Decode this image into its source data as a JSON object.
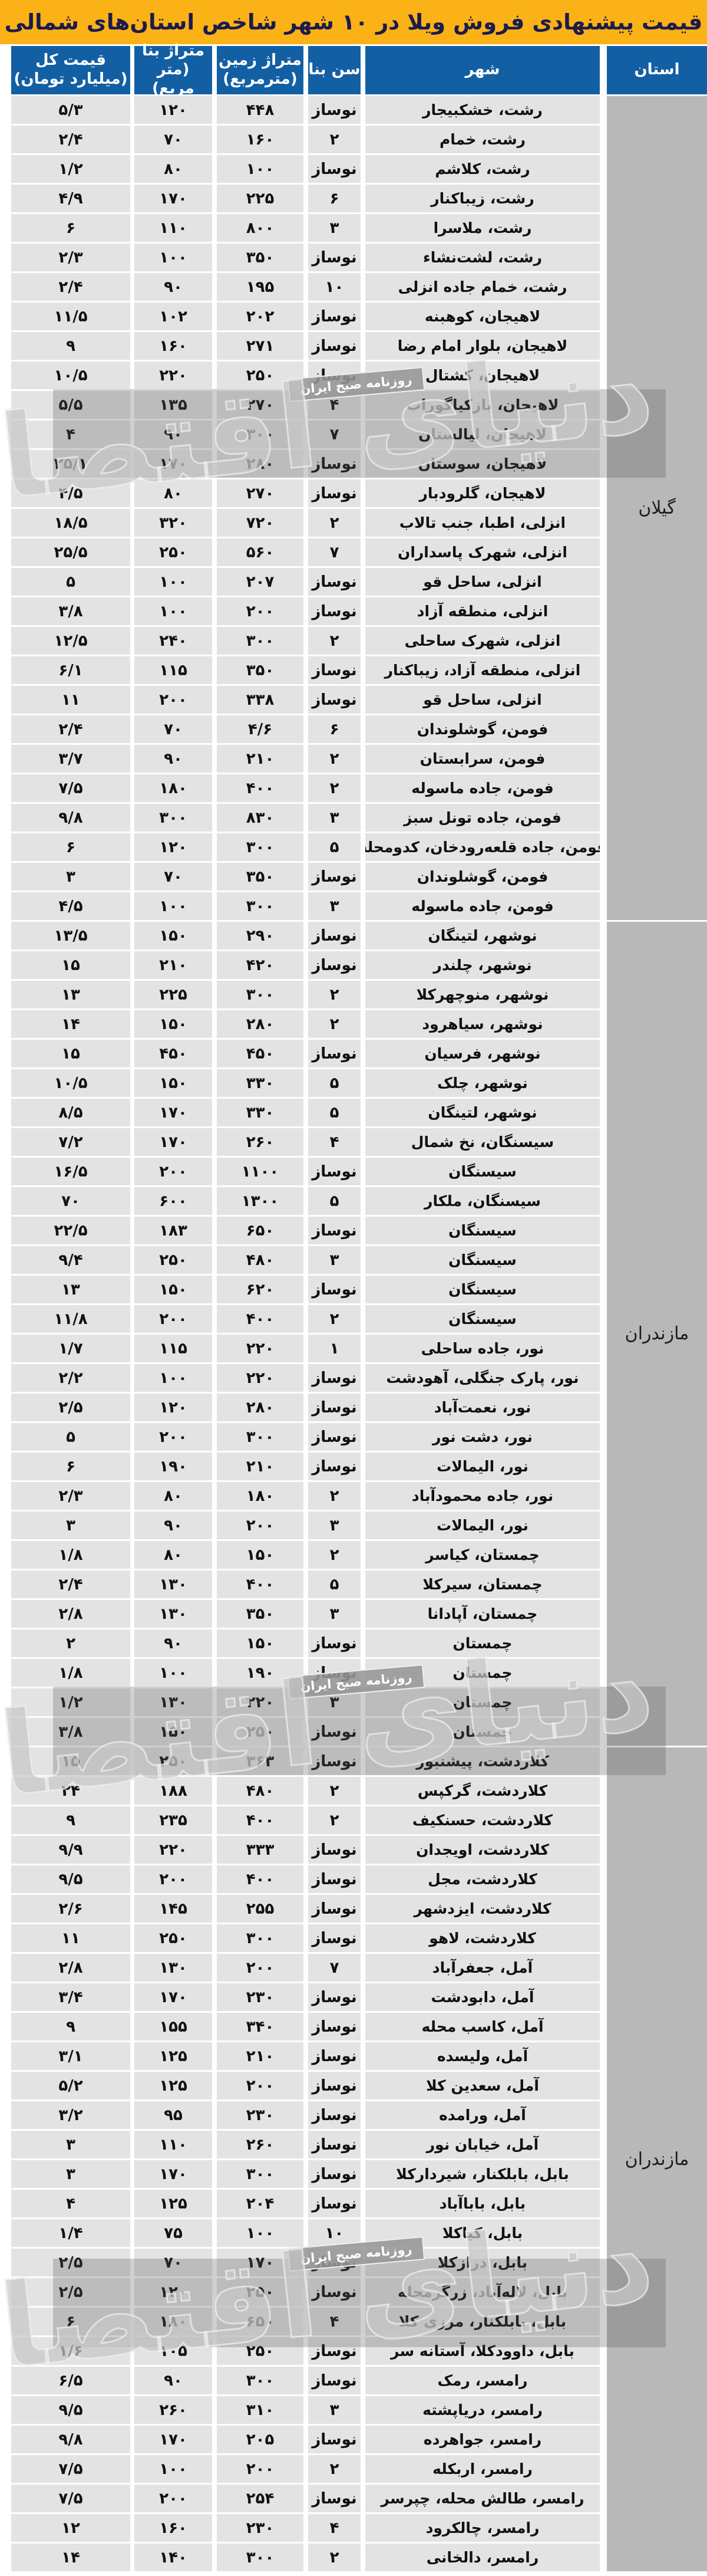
{
  "title": "قیمت پیشنهادی فروش ویلا در ۱۰ شهر شاخص استان‌های شمالی",
  "watermark": {
    "logo_text": "دنیای اقتصاد",
    "badge_text": "روزنامه صبح ایران"
  },
  "colors": {
    "title_bg": "#fbb216",
    "title_text": "#1b1b4e",
    "header_bg": "#135fa4",
    "header_text": "#ffffff",
    "row_bg": "#e3e3e3",
    "province_bg": "#b8b8b8",
    "body_text": "#111111"
  },
  "table": {
    "headers": {
      "province": "استان",
      "city": "شهر",
      "age": "سن بنا",
      "land_l1": "متراژ زمین",
      "land_l2": "(مترمربع)",
      "building_l1": "متراژ بنا",
      "building_l2": "(متر مربع)",
      "price_l1": "قیمت کل",
      "price_l2": "(میلیارد تومان)"
    },
    "row_format": [
      "city",
      "age",
      "land_area",
      "building_area",
      "total_price"
    ],
    "groups": [
      {
        "province": "گیلان",
        "rows": [
          [
            "رشت، خشکبیجار",
            "نوساز",
            "۴۴۸",
            "۱۲۰",
            "۵/۳"
          ],
          [
            "رشت، خمام",
            "۲",
            "۱۶۰",
            "۷۰",
            "۲/۴"
          ],
          [
            "رشت، کلاشم",
            "نوساز",
            "۱۰۰",
            "۸۰",
            "۱/۲"
          ],
          [
            "رشت، زیباکنار",
            "۶",
            "۲۲۵",
            "۱۷۰",
            "۴/۹"
          ],
          [
            "رشت، ملاسرا",
            "۳",
            "۸۰۰",
            "۱۱۰",
            "۶"
          ],
          [
            "رشت، لشت‌نشاء",
            "نوساز",
            "۳۵۰",
            "۱۰۰",
            "۲/۳"
          ],
          [
            "رشت، خمام جاده انزلی",
            "۱۰",
            "۱۹۵",
            "۹۰",
            "۲/۴"
          ],
          [
            "لاهیجان، کوهبنه",
            "نوساز",
            "۲۰۲",
            "۱۰۲",
            "۱۱/۵"
          ],
          [
            "لاهیجان، بلوار امام رضا",
            "نوساز",
            "۲۷۱",
            "۱۶۰",
            "۹"
          ],
          [
            "لاهیجان، کشتال",
            "نوساز",
            "۲۵۰",
            "۲۲۰",
            "۱۰/۵"
          ],
          [
            "لاهیجان، بازکیاگوراب",
            "۴",
            "۲۷۰",
            "۱۳۵",
            "۵/۵"
          ],
          [
            "لاهیجان، لیالستان",
            "۷",
            "۳۰۰",
            "۹۰",
            "۴"
          ],
          [
            "لاهیجان، سوستان",
            "نوساز",
            "۲۸۰",
            "۱۷۰",
            "۲۵/۱"
          ],
          [
            "لاهیجان، گلرودبار",
            "نوساز",
            "۲۷۰",
            "۸۰",
            "۴/۵"
          ],
          [
            "انزلی، اطبا، جنب تالاب",
            "۲",
            "۷۲۰",
            "۳۲۰",
            "۱۸/۵"
          ],
          [
            "انزلی، شهرک پاسداران",
            "۷",
            "۵۶۰",
            "۲۵۰",
            "۲۵/۵"
          ],
          [
            "انزلی، ساحل قو",
            "نوساز",
            "۲۰۷",
            "۱۰۰",
            "۵"
          ],
          [
            "انزلی، منطقه آزاد",
            "نوساز",
            "۲۰۰",
            "۱۰۰",
            "۳/۸"
          ],
          [
            "انزلی، شهرک ساحلی",
            "۲",
            "۳۰۰",
            "۲۴۰",
            "۱۲/۵"
          ],
          [
            "انزلی، منطقه آزاد، زیباکنار",
            "نوساز",
            "۳۵۰",
            "۱۱۵",
            "۶/۱"
          ],
          [
            "انزلی، ساحل قو",
            "نوساز",
            "۳۳۸",
            "۲۰۰",
            "۱۱"
          ],
          [
            "فومن، گوشلوندان",
            "۶",
            "۴/۶",
            "۷۰",
            "۲/۴"
          ],
          [
            "فومن، سرابستان",
            "۲",
            "۲۱۰",
            "۹۰",
            "۳/۷"
          ],
          [
            "فومن، جاده ماسوله",
            "۲",
            "۴۰۰",
            "۱۸۰",
            "۷/۵"
          ],
          [
            "فومن، جاده تونل سبز",
            "۳",
            "۸۳۰",
            "۳۰۰",
            "۹/۸"
          ],
          [
            "فومن، جاده قلعه‌رودخان، کدومحله",
            "۵",
            "۳۰۰",
            "۱۲۰",
            "۶"
          ],
          [
            "فومن، گوشلوندان",
            "نوساز",
            "۳۵۰",
            "۷۰",
            "۳"
          ],
          [
            "فومن، جاده ماسوله",
            "۳",
            "۳۰۰",
            "۱۰۰",
            "۴/۵"
          ]
        ]
      },
      {
        "province": "مازندران",
        "rows": [
          [
            "نوشهر، لتینگان",
            "نوساز",
            "۲۹۰",
            "۱۵۰",
            "۱۳/۵"
          ],
          [
            "نوشهر، چلندر",
            "نوساز",
            "۴۲۰",
            "۲۱۰",
            "۱۵"
          ],
          [
            "نوشهر، منوچهرکلا",
            "۲",
            "۳۰۰",
            "۲۲۵",
            "۱۳"
          ],
          [
            "نوشهر، سیاهرود",
            "۲",
            "۲۸۰",
            "۱۵۰",
            "۱۴"
          ],
          [
            "نوشهر، فرسیان",
            "نوساز",
            "۴۵۰",
            "۴۵۰",
            "۱۵"
          ],
          [
            "نوشهر، چلک",
            "۵",
            "۳۳۰",
            "۱۵۰",
            "۱۰/۵"
          ],
          [
            "نوشهر، لتینگان",
            "۵",
            "۳۳۰",
            "۱۷۰",
            "۸/۵"
          ],
          [
            "سیسنگان، نخ شمال",
            "۴",
            "۲۶۰",
            "۱۷۰",
            "۷/۲"
          ],
          [
            "سیسنگان",
            "نوساز",
            "۱۱۰۰",
            "۲۰۰",
            "۱۶/۵"
          ],
          [
            "سیسنگان، ملکار",
            "۵",
            "۱۳۰۰",
            "۶۰۰",
            "۷۰"
          ],
          [
            "سیسنگان",
            "نوساز",
            "۶۵۰",
            "۱۸۳",
            "۲۲/۵"
          ],
          [
            "سیسنگان",
            "۳",
            "۴۸۰",
            "۲۵۰",
            "۹/۴"
          ],
          [
            "سیسنگان",
            "نوساز",
            "۶۲۰",
            "۱۵۰",
            "۱۳"
          ],
          [
            "سیسنگان",
            "۲",
            "۴۰۰",
            "۲۰۰",
            "۱۱/۸"
          ],
          [
            "نور، جاده ساحلی",
            "۱",
            "۲۲۰",
            "۱۱۵",
            "۱/۷"
          ],
          [
            "نور، پارک جنگلی، آهودشت",
            "نوساز",
            "۲۲۰",
            "۱۰۰",
            "۲/۲"
          ],
          [
            "نور، نعمت‌آباد",
            "نوساز",
            "۲۸۰",
            "۱۲۰",
            "۲/۵"
          ],
          [
            "نور، دشت نور",
            "نوساز",
            "۳۰۰",
            "۲۰۰",
            "۵"
          ],
          [
            "نور، الیمالات",
            "نوساز",
            "۲۱۰",
            "۱۹۰",
            "۶"
          ],
          [
            "نور، جاده محمودآباد",
            "۲",
            "۱۸۰",
            "۸۰",
            "۲/۳"
          ],
          [
            "نور، الیمالات",
            "۳",
            "۲۰۰",
            "۹۰",
            "۳"
          ],
          [
            "چمستان، کیاسر",
            "۲",
            "۱۵۰",
            "۸۰",
            "۱/۸"
          ],
          [
            "چمستان، سیرکلا",
            "۵",
            "۴۰۰",
            "۱۳۰",
            "۲/۴"
          ],
          [
            "چمستان، آپادانا",
            "۳",
            "۳۵۰",
            "۱۳۰",
            "۲/۸"
          ],
          [
            "چمستان",
            "نوساز",
            "۱۵۰",
            "۹۰",
            "۲"
          ],
          [
            "چمستان",
            "نوساز",
            "۱۹۰",
            "۱۰۰",
            "۱/۸"
          ],
          [
            "چمستان",
            "۳",
            "۲۲۰",
            "۱۳۰",
            "۱/۲"
          ],
          [
            "چمستان",
            "نوساز",
            "۲۵۰",
            "۱۵۰",
            "۳/۸"
          ]
        ]
      },
      {
        "province": "مازندران",
        "rows": [
          [
            "کلاردشت، پیشنبور",
            "نوساز",
            "۳۶۳",
            "۲۵۰",
            "۱۵"
          ],
          [
            "کلاردشت، گرکپس",
            "۲",
            "۴۸۰",
            "۱۸۸",
            "۲۴"
          ],
          [
            "کلاردشت، حسنکیف",
            "۲",
            "۴۰۰",
            "۲۳۵",
            "۹"
          ],
          [
            "کلاردشت، اویجدان",
            "نوساز",
            "۳۳۳",
            "۲۲۰",
            "۹/۹"
          ],
          [
            "کلاردشت، مجل",
            "نوساز",
            "۴۰۰",
            "۲۰۰",
            "۹/۵"
          ],
          [
            "کلاردشت، ایزدشهر",
            "نوساز",
            "۲۵۵",
            "۱۴۵",
            "۲/۶"
          ],
          [
            "کلاردشت، لاهو",
            "نوساز",
            "۳۰۰",
            "۲۵۰",
            "۱۱"
          ],
          [
            "آمل، جعفرآباد",
            "۷",
            "۲۰۰",
            "۱۳۰",
            "۲/۸"
          ],
          [
            "آمل، دابودشت",
            "نوساز",
            "۲۳۰",
            "۱۷۰",
            "۳/۴"
          ],
          [
            "آمل، کاسب محله",
            "نوساز",
            "۳۴۰",
            "۱۵۵",
            "۹"
          ],
          [
            "آمل، ولیسده",
            "نوساز",
            "۲۱۰",
            "۱۲۵",
            "۳/۱"
          ],
          [
            "آمل، سعدین کلا",
            "نوساز",
            "۲۰۰",
            "۱۲۵",
            "۵/۲"
          ],
          [
            "آمل، ورامده",
            "نوساز",
            "۲۳۰",
            "۹۵",
            "۳/۲"
          ],
          [
            "آمل، خیابان نور",
            "نوساز",
            "۲۶۰",
            "۱۱۰",
            "۳"
          ],
          [
            "بابل، بابلکنار، شیردارکلا",
            "نوساز",
            "۳۰۰",
            "۱۷۰",
            "۳"
          ],
          [
            "بابل، باباآباد",
            "نوساز",
            "۲۰۴",
            "۱۲۵",
            "۴"
          ],
          [
            "بابل، کیاکلا",
            "۱۰",
            "۱۰۰",
            "۷۵",
            "۱/۴"
          ],
          [
            "بابل، درازکلا",
            "نوساز",
            "۱۷۰",
            "۷۰",
            "۲/۵"
          ],
          [
            "بابل، لاله‌آباد، زرگرمحله",
            "نوساز",
            "۲۵۰",
            "۱۲۰",
            "۲/۵"
          ],
          [
            "بابل، بابلکنار، مرزی کلا",
            "۴",
            "۶۵۰",
            "۱۸۰",
            "۶"
          ],
          [
            "بابل، داوودکلا، آستانه سر",
            "نوساز",
            "۲۵۰",
            "۱۰۵",
            "۱/۶"
          ],
          [
            "رامسر، رمک",
            "نوساز",
            "۳۰۰",
            "۹۰",
            "۶/۵"
          ],
          [
            "رامسر، دریاپشته",
            "۳",
            "۳۱۰",
            "۲۶۰",
            "۹/۵"
          ],
          [
            "رامسر، جواهرده",
            "نوساز",
            "۲۰۵",
            "۱۷۰",
            "۹/۸"
          ],
          [
            "رامسر، اربکله",
            "۲",
            "۲۰۰",
            "۱۰۰",
            "۷/۵"
          ],
          [
            "رامسر، طالش محله، چپرسر",
            "نوساز",
            "۲۵۴",
            "۲۰۰",
            "۷/۵"
          ],
          [
            "رامسر، چالکرود",
            "۴",
            "۲۳۰",
            "۱۶۰",
            "۱۲"
          ],
          [
            "رامسر، دالخانی",
            "۲",
            "۳۰۰",
            "۱۴۰",
            "۱۴"
          ]
        ]
      }
    ]
  }
}
